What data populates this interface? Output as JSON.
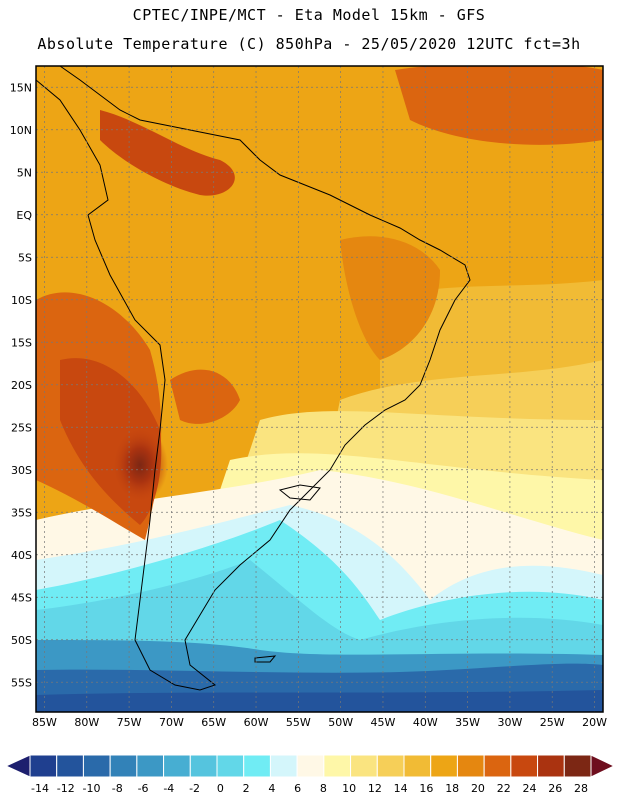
{
  "title_line1": "CPTEC/INPE/MCT -  Eta Model 15km - GFS",
  "title_line2": "Absolute Temperature (C) 850hPa - 25/05/2020 12UTC fct=3h",
  "map": {
    "lat_labels": [
      "15N",
      "10N",
      "5N",
      "EQ",
      "5S",
      "10S",
      "15S",
      "20S",
      "25S",
      "30S",
      "35S",
      "40S",
      "45S",
      "50S",
      "55S"
    ],
    "lat_values": [
      15,
      10,
      5,
      0,
      -5,
      -10,
      -15,
      -20,
      -25,
      -30,
      -35,
      -40,
      -45,
      -50,
      -55
    ],
    "lon_labels": [
      "85W",
      "80W",
      "75W",
      "70W",
      "65W",
      "60W",
      "55W",
      "50W",
      "45W",
      "40W",
      "35W",
      "30W",
      "25W",
      "20W"
    ],
    "lon_values": [
      -85,
      -80,
      -75,
      -70,
      -65,
      -60,
      -55,
      -50,
      -45,
      -40,
      -35,
      -30,
      -25,
      -20
    ],
    "lon_range": [
      -86,
      -19
    ],
    "lat_range": [
      -58.5,
      17.5
    ]
  },
  "colorbar": {
    "labels": [
      "-14",
      "-12",
      "-10",
      "-8",
      "-6",
      "-4",
      "-2",
      "0",
      "2",
      "4",
      "6",
      "8",
      "10",
      "12",
      "14",
      "16",
      "18",
      "20",
      "22",
      "24",
      "26",
      "28"
    ],
    "colors": [
      "#1f3f8f",
      "#23549c",
      "#2a6aaa",
      "#3282b8",
      "#3c98c5",
      "#47aed2",
      "#55c4de",
      "#62d7e8",
      "#70ecf4",
      "#d4f6fb",
      "#fff8e6",
      "#fef7a8",
      "#fae480",
      "#f6cf58",
      "#f1bb35",
      "#eda515",
      "#e58710",
      "#db6510",
      "#c8480f",
      "#aa3310",
      "#7c2714"
    ],
    "under_color": "#1d1f6e",
    "over_color": "#6e0e1e"
  }
}
